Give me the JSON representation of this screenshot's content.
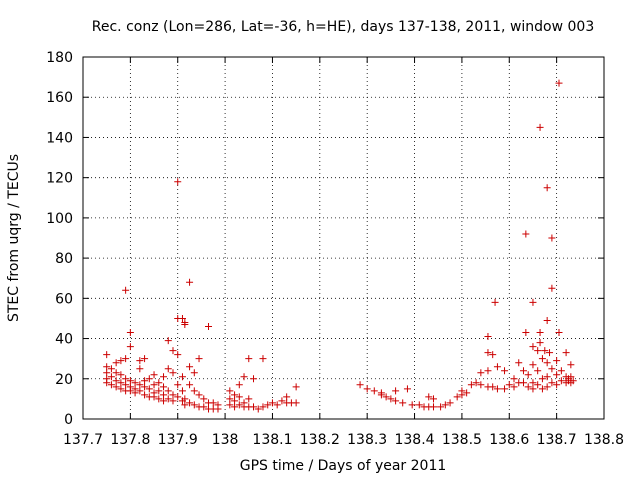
{
  "chart_data": {
    "type": "scatter",
    "title": "Rec. conz (Lon=286, Lat=-36, h=HE), days 137-138, 2011, window 003",
    "xlabel": "GPS time / Days of year 2011",
    "ylabel": "STEC from uqrg / TECUs",
    "xlim": [
      137.7,
      138.8
    ],
    "ylim": [
      0,
      180
    ],
    "xticks": [
      137.7,
      137.8,
      137.9,
      138.0,
      138.1,
      138.2,
      138.3,
      138.4,
      138.5,
      138.6,
      138.7,
      138.8
    ],
    "xtick_labels": [
      "137.7",
      "137.8",
      "137.9",
      "138",
      "138.1",
      "138.2",
      "138.3",
      "138.4",
      "138.5",
      "138.6",
      "138.7",
      "138.8"
    ],
    "yticks": [
      0,
      20,
      40,
      60,
      80,
      100,
      120,
      140,
      160,
      180
    ],
    "ytick_labels": [
      "0",
      "20",
      "40",
      "60",
      "80",
      "100",
      "120",
      "140",
      "160",
      "180"
    ],
    "marker": "plus",
    "color": "#cc0000",
    "points": [
      [
        137.75,
        32
      ],
      [
        137.75,
        26
      ],
      [
        137.75,
        23
      ],
      [
        137.75,
        20
      ],
      [
        137.75,
        18
      ],
      [
        137.76,
        25
      ],
      [
        137.76,
        21
      ],
      [
        137.76,
        17
      ],
      [
        137.77,
        28
      ],
      [
        137.77,
        23
      ],
      [
        137.77,
        19
      ],
      [
        137.77,
        16
      ],
      [
        137.78,
        29
      ],
      [
        137.78,
        22
      ],
      [
        137.78,
        18
      ],
      [
        137.78,
        15
      ],
      [
        137.79,
        64
      ],
      [
        137.79,
        30
      ],
      [
        137.79,
        20
      ],
      [
        137.79,
        17
      ],
      [
        137.79,
        14
      ],
      [
        137.8,
        43
      ],
      [
        137.8,
        36
      ],
      [
        137.8,
        19
      ],
      [
        137.8,
        16
      ],
      [
        137.8,
        14
      ],
      [
        137.81,
        18
      ],
      [
        137.81,
        15
      ],
      [
        137.81,
        13
      ],
      [
        137.82,
        29
      ],
      [
        137.82,
        25
      ],
      [
        137.82,
        17
      ],
      [
        137.82,
        14
      ],
      [
        137.83,
        30
      ],
      [
        137.83,
        19
      ],
      [
        137.83,
        16
      ],
      [
        137.83,
        12
      ],
      [
        137.84,
        20
      ],
      [
        137.84,
        15
      ],
      [
        137.84,
        11
      ],
      [
        137.85,
        22
      ],
      [
        137.85,
        17
      ],
      [
        137.85,
        13
      ],
      [
        137.85,
        11
      ],
      [
        137.86,
        18
      ],
      [
        137.86,
        14
      ],
      [
        137.86,
        10
      ],
      [
        137.87,
        21
      ],
      [
        137.87,
        16
      ],
      [
        137.87,
        12
      ],
      [
        137.87,
        9
      ],
      [
        137.88,
        39
      ],
      [
        137.88,
        25
      ],
      [
        137.88,
        14
      ],
      [
        137.88,
        10
      ],
      [
        137.89,
        34
      ],
      [
        137.89,
        23
      ],
      [
        137.89,
        12
      ],
      [
        137.89,
        9
      ],
      [
        137.9,
        118
      ],
      [
        137.9,
        50
      ],
      [
        137.9,
        32
      ],
      [
        137.9,
        17
      ],
      [
        137.9,
        11
      ],
      [
        137.91,
        50
      ],
      [
        137.91,
        21
      ],
      [
        137.91,
        14
      ],
      [
        137.91,
        9
      ],
      [
        137.915,
        48
      ],
      [
        137.915,
        47
      ],
      [
        137.915,
        10
      ],
      [
        137.915,
        7
      ],
      [
        137.925,
        68
      ],
      [
        137.925,
        26
      ],
      [
        137.925,
        17
      ],
      [
        137.925,
        8
      ],
      [
        137.935,
        23
      ],
      [
        137.935,
        14
      ],
      [
        137.935,
        7
      ],
      [
        137.945,
        30
      ],
      [
        137.945,
        12
      ],
      [
        137.945,
        6
      ],
      [
        137.955,
        10
      ],
      [
        137.955,
        6
      ],
      [
        137.965,
        46
      ],
      [
        137.965,
        8
      ],
      [
        137.965,
        5
      ],
      [
        137.975,
        8
      ],
      [
        137.975,
        5
      ],
      [
        137.985,
        7
      ],
      [
        137.985,
        5
      ],
      [
        138.01,
        14
      ],
      [
        138.01,
        10
      ],
      [
        138.01,
        7
      ],
      [
        138.02,
        12
      ],
      [
        138.02,
        9
      ],
      [
        138.02,
        6
      ],
      [
        138.03,
        17
      ],
      [
        138.03,
        11
      ],
      [
        138.03,
        7
      ],
      [
        138.04,
        21
      ],
      [
        138.04,
        8
      ],
      [
        138.04,
        6
      ],
      [
        138.05,
        30
      ],
      [
        138.05,
        10
      ],
      [
        138.05,
        6
      ],
      [
        138.06,
        20
      ],
      [
        138.06,
        6
      ],
      [
        138.07,
        5
      ],
      [
        138.08,
        30
      ],
      [
        138.08,
        6
      ],
      [
        138.09,
        7
      ],
      [
        138.1,
        8
      ],
      [
        138.11,
        7
      ],
      [
        138.12,
        9
      ],
      [
        138.13,
        11
      ],
      [
        138.13,
        8
      ],
      [
        138.14,
        8
      ],
      [
        138.15,
        16
      ],
      [
        138.15,
        8
      ],
      [
        138.285,
        17
      ],
      [
        138.3,
        15
      ],
      [
        138.315,
        14
      ],
      [
        138.33,
        12
      ],
      [
        138.33,
        13
      ],
      [
        138.34,
        11
      ],
      [
        138.35,
        10
      ],
      [
        138.36,
        14
      ],
      [
        138.36,
        9
      ],
      [
        138.375,
        8
      ],
      [
        138.385,
        15
      ],
      [
        138.395,
        7
      ],
      [
        138.41,
        7
      ],
      [
        138.42,
        6
      ],
      [
        138.43,
        11
      ],
      [
        138.43,
        6
      ],
      [
        138.44,
        10
      ],
      [
        138.44,
        6
      ],
      [
        138.455,
        6
      ],
      [
        138.465,
        7
      ],
      [
        138.475,
        8
      ],
      [
        138.49,
        11
      ],
      [
        138.5,
        12
      ],
      [
        138.5,
        14
      ],
      [
        138.51,
        13
      ],
      [
        138.52,
        17
      ],
      [
        138.53,
        18
      ],
      [
        138.54,
        23
      ],
      [
        138.54,
        17
      ],
      [
        138.555,
        41
      ],
      [
        138.555,
        33
      ],
      [
        138.555,
        24
      ],
      [
        138.555,
        16
      ],
      [
        138.565,
        32
      ],
      [
        138.565,
        16
      ],
      [
        138.57,
        58
      ],
      [
        138.575,
        26
      ],
      [
        138.575,
        15
      ],
      [
        138.59,
        24
      ],
      [
        138.59,
        15
      ],
      [
        138.6,
        17
      ],
      [
        138.61,
        20
      ],
      [
        138.61,
        16
      ],
      [
        138.62,
        28
      ],
      [
        138.62,
        18
      ],
      [
        138.63,
        24
      ],
      [
        138.63,
        18
      ],
      [
        138.635,
        92
      ],
      [
        138.635,
        43
      ],
      [
        138.64,
        22
      ],
      [
        138.64,
        16
      ],
      [
        138.65,
        58
      ],
      [
        138.65,
        36
      ],
      [
        138.65,
        27
      ],
      [
        138.65,
        18
      ],
      [
        138.65,
        15
      ],
      [
        138.66,
        34
      ],
      [
        138.66,
        24
      ],
      [
        138.66,
        17
      ],
      [
        138.665,
        145
      ],
      [
        138.665,
        43
      ],
      [
        138.665,
        38
      ],
      [
        138.67,
        30
      ],
      [
        138.67,
        20
      ],
      [
        138.67,
        15
      ],
      [
        138.675,
        34
      ],
      [
        138.68,
        115
      ],
      [
        138.68,
        49
      ],
      [
        138.68,
        28
      ],
      [
        138.68,
        21
      ],
      [
        138.68,
        16
      ],
      [
        138.685,
        33
      ],
      [
        138.69,
        90
      ],
      [
        138.69,
        65
      ],
      [
        138.69,
        25
      ],
      [
        138.69,
        18
      ],
      [
        138.7,
        29
      ],
      [
        138.7,
        22
      ],
      [
        138.7,
        17
      ],
      [
        138.705,
        167
      ],
      [
        138.705,
        43
      ],
      [
        138.71,
        24
      ],
      [
        138.71,
        19
      ],
      [
        138.72,
        33
      ],
      [
        138.72,
        21
      ],
      [
        138.72,
        18
      ],
      [
        138.725,
        20
      ],
      [
        138.725,
        19
      ],
      [
        138.73,
        27
      ],
      [
        138.73,
        21
      ],
      [
        138.73,
        18
      ],
      [
        138.735,
        19
      ]
    ]
  }
}
